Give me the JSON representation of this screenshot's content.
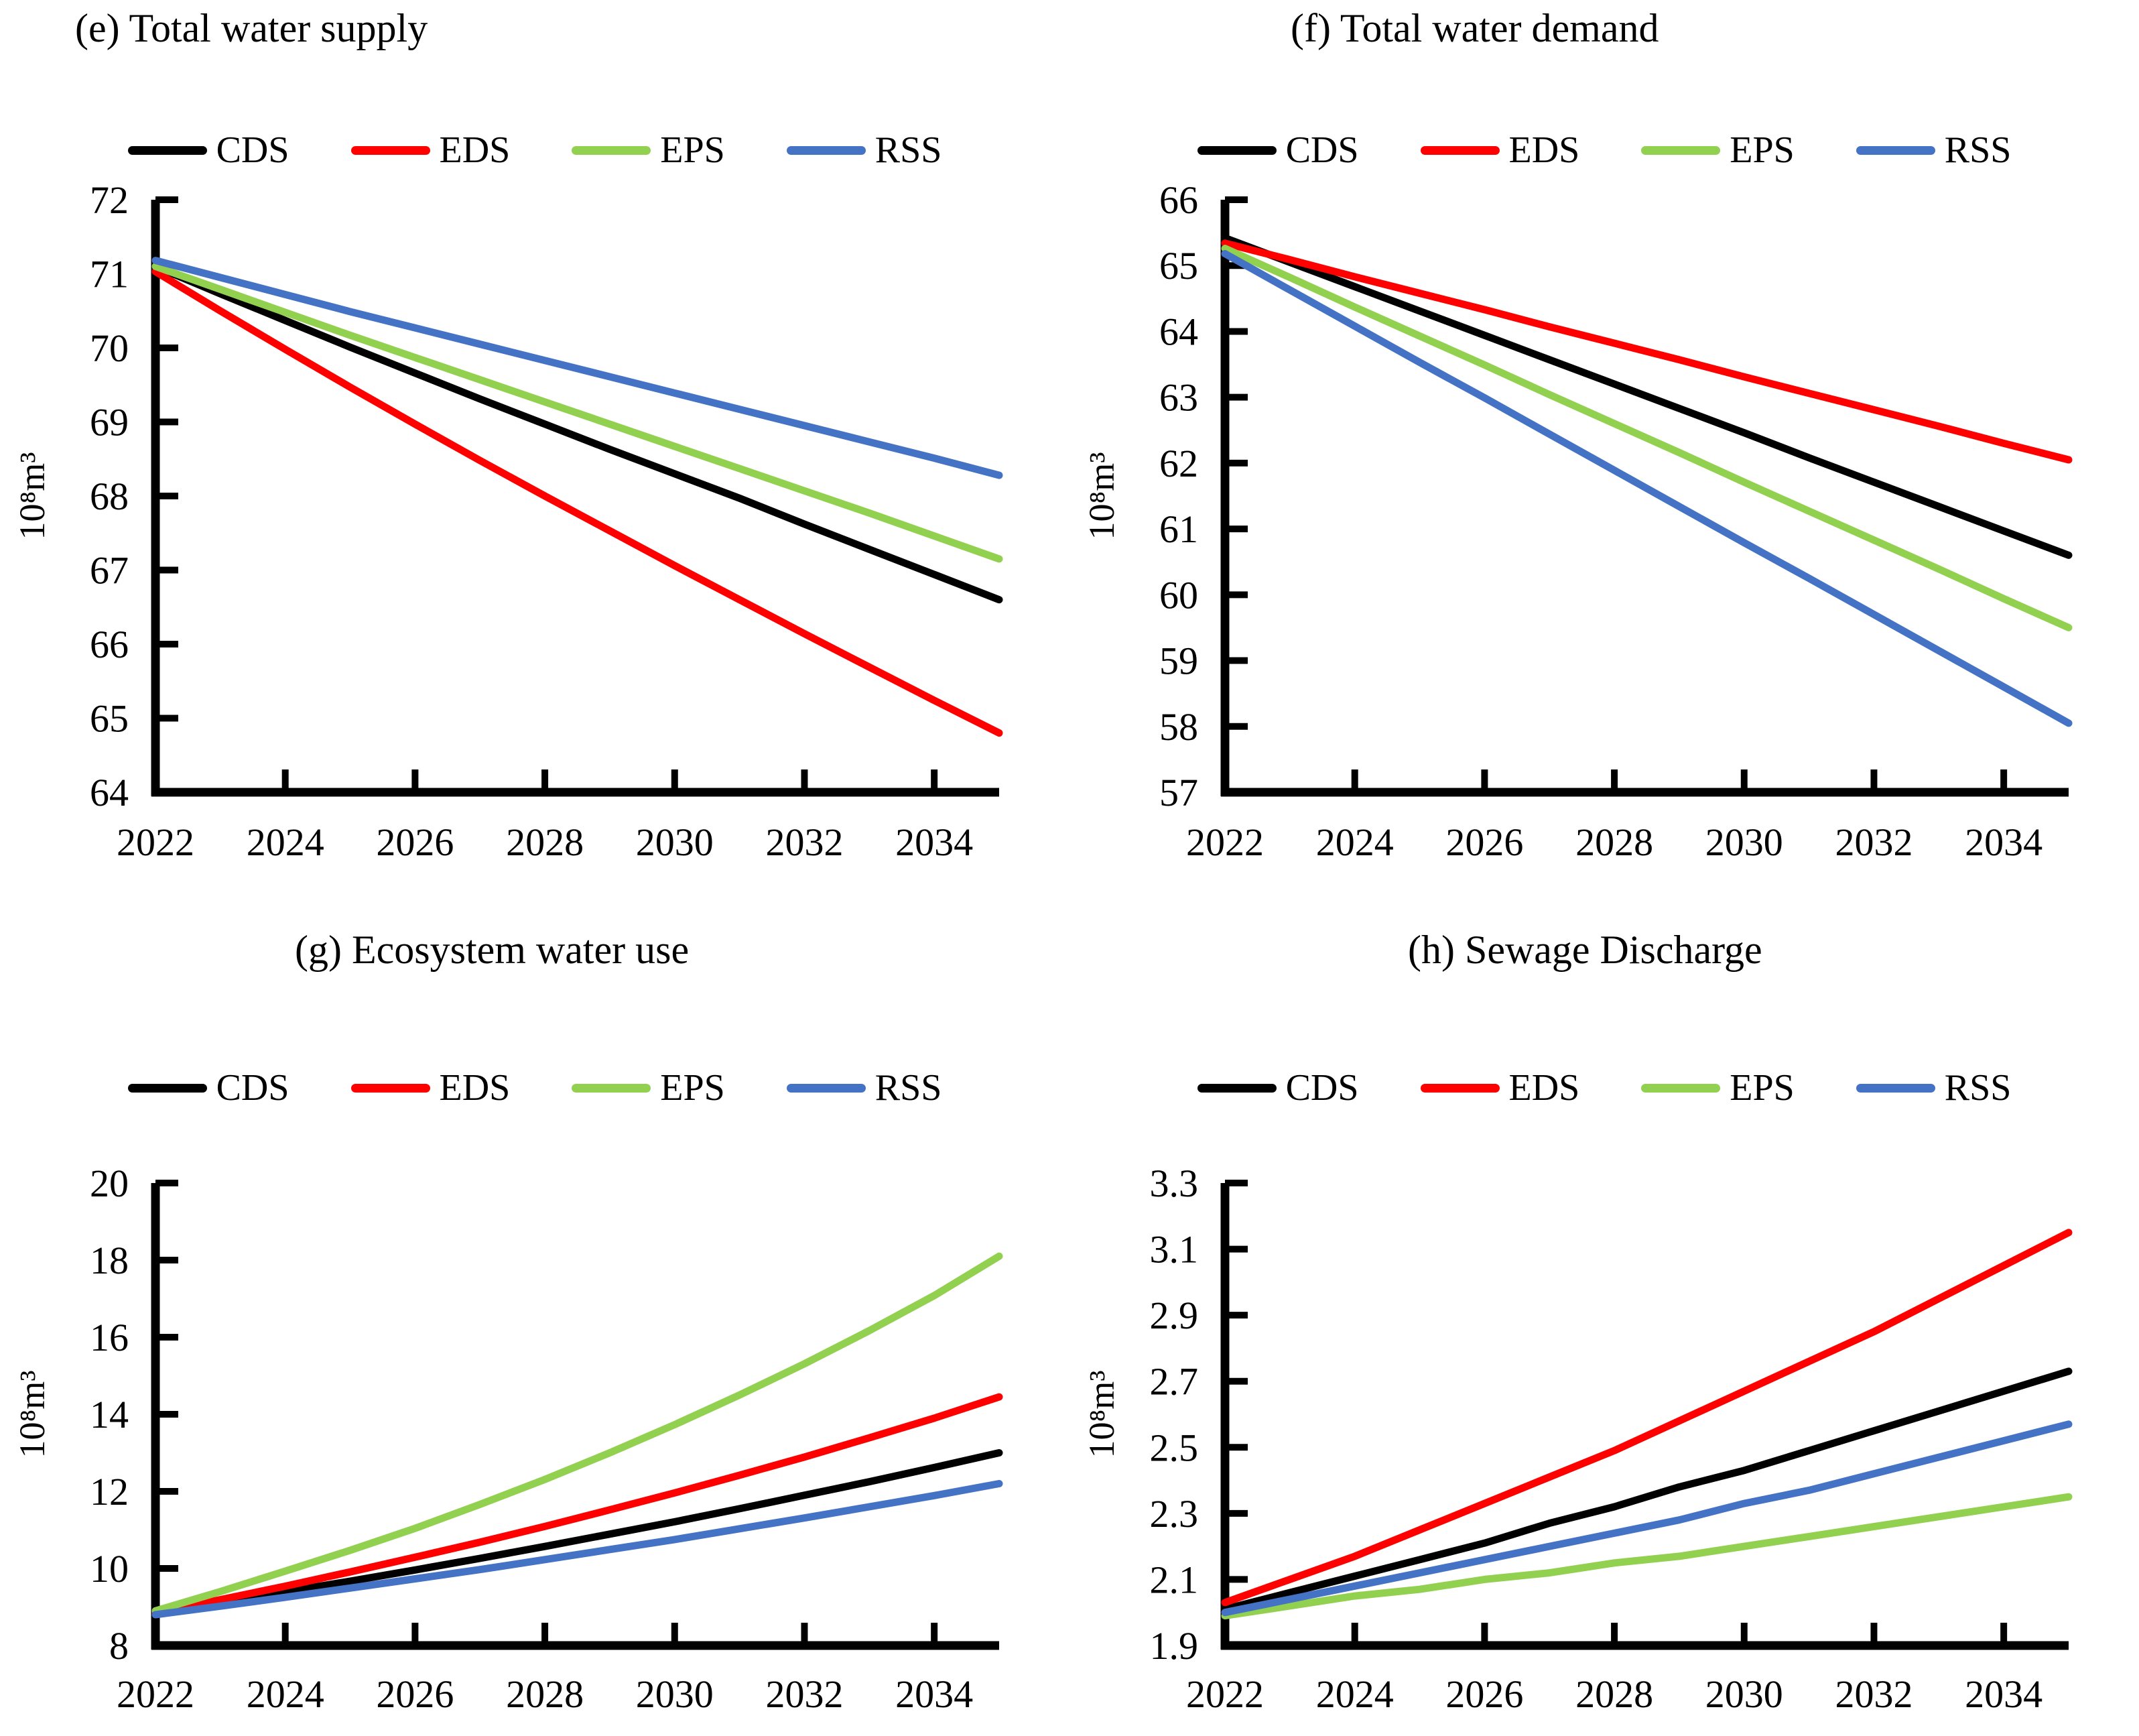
{
  "figure": {
    "background": "#ffffff",
    "scenario_colors": {
      "CDS": "#000000",
      "EDS": "#ff0000",
      "EPS": "#92d050",
      "RSS": "#4472c4"
    }
  },
  "chart_data": [
    {
      "id": "total-water-supply",
      "type": "line",
      "title": "(e) Total water supply",
      "ylabel": "10⁸m³",
      "grid": false,
      "legend_position": "top",
      "ylim": [
        64,
        72
      ],
      "x": [
        2022,
        2023,
        2024,
        2025,
        2026,
        2027,
        2028,
        2029,
        2030,
        2031,
        2032,
        2033,
        2034,
        2035
      ],
      "xticks": [
        {
          "v": 2022,
          "label": "2022"
        },
        {
          "v": 2024,
          "label": "2024"
        },
        {
          "v": 2026,
          "label": "2026"
        },
        {
          "v": 2028,
          "label": "2028"
        },
        {
          "v": 2030,
          "label": "2030"
        },
        {
          "v": 2032,
          "label": "2032"
        },
        {
          "v": 2034,
          "label": "2034"
        }
      ],
      "yticks": [
        {
          "v": 64,
          "label": "64"
        },
        {
          "v": 65,
          "label": "65"
        },
        {
          "v": 66,
          "label": "66"
        },
        {
          "v": 67,
          "label": "67"
        },
        {
          "v": 68,
          "label": "68"
        },
        {
          "v": 69,
          "label": "69"
        },
        {
          "v": 70,
          "label": "70"
        },
        {
          "v": 71,
          "label": "71"
        },
        {
          "v": 72,
          "label": "72"
        }
      ],
      "series": [
        {
          "name": "CDS",
          "color": "#000000",
          "values": [
            71.1,
            70.73,
            70.37,
            70.01,
            69.66,
            69.31,
            68.97,
            68.63,
            68.3,
            67.97,
            67.62,
            67.28,
            66.94,
            66.6
          ]
        },
        {
          "name": "EDS",
          "color": "#ff0000",
          "values": [
            71.03,
            70.5,
            69.98,
            69.47,
            68.97,
            68.48,
            68.0,
            67.53,
            67.06,
            66.6,
            66.14,
            65.69,
            65.24,
            64.8
          ]
        },
        {
          "name": "EPS",
          "color": "#92d050",
          "values": [
            71.1,
            70.79,
            70.48,
            70.17,
            69.87,
            69.57,
            69.27,
            68.97,
            68.67,
            68.37,
            68.07,
            67.77,
            67.46,
            67.15
          ]
        },
        {
          "name": "RSS",
          "color": "#4472c4",
          "values": [
            71.18,
            70.95,
            70.72,
            70.49,
            70.27,
            70.05,
            69.83,
            69.61,
            69.39,
            69.17,
            68.95,
            68.73,
            68.51,
            68.28
          ]
        }
      ]
    },
    {
      "id": "total-water-demand",
      "type": "line",
      "title": "(f) Total water demand",
      "ylabel": "10⁸m³",
      "grid": false,
      "legend_position": "top",
      "ylim": [
        57,
        66
      ],
      "x": [
        2022,
        2023,
        2024,
        2025,
        2026,
        2027,
        2028,
        2029,
        2030,
        2031,
        2032,
        2033,
        2034,
        2035
      ],
      "xticks": [
        {
          "v": 2022,
          "label": "2022"
        },
        {
          "v": 2024,
          "label": "2024"
        },
        {
          "v": 2026,
          "label": "2026"
        },
        {
          "v": 2028,
          "label": "2028"
        },
        {
          "v": 2030,
          "label": "2030"
        },
        {
          "v": 2032,
          "label": "2032"
        },
        {
          "v": 2034,
          "label": "2034"
        }
      ],
      "yticks": [
        {
          "v": 57,
          "label": "57"
        },
        {
          "v": 58,
          "label": "58"
        },
        {
          "v": 59,
          "label": "59"
        },
        {
          "v": 60,
          "label": "60"
        },
        {
          "v": 61,
          "label": "61"
        },
        {
          "v": 62,
          "label": "62"
        },
        {
          "v": 63,
          "label": "63"
        },
        {
          "v": 64,
          "label": "64"
        },
        {
          "v": 65,
          "label": "65"
        },
        {
          "v": 66,
          "label": "66"
        }
      ],
      "series": [
        {
          "name": "CDS",
          "color": "#000000",
          "values": [
            65.42,
            65.05,
            64.68,
            64.31,
            63.94,
            63.57,
            63.2,
            62.83,
            62.46,
            62.08,
            61.71,
            61.34,
            60.97,
            60.6
          ]
        },
        {
          "name": "EDS",
          "color": "#ff0000",
          "values": [
            65.34,
            65.09,
            64.83,
            64.58,
            64.33,
            64.07,
            63.82,
            63.57,
            63.31,
            63.06,
            62.81,
            62.56,
            62.3,
            62.05
          ]
        },
        {
          "name": "EPS",
          "color": "#92d050",
          "values": [
            65.26,
            64.82,
            64.37,
            63.93,
            63.49,
            63.04,
            62.6,
            62.16,
            61.71,
            61.27,
            60.83,
            60.39,
            59.94,
            59.5
          ]
        },
        {
          "name": "RSS",
          "color": "#4472c4",
          "values": [
            65.18,
            64.63,
            64.08,
            63.53,
            62.99,
            62.44,
            61.89,
            61.34,
            60.79,
            60.25,
            59.7,
            59.15,
            58.6,
            58.05
          ]
        }
      ]
    },
    {
      "id": "ecosystem-water-use",
      "type": "line",
      "title": "(g) Ecosystem water use",
      "ylabel": "10⁸m³",
      "grid": false,
      "legend_position": "top",
      "ylim": [
        8,
        20
      ],
      "x": [
        2022,
        2023,
        2024,
        2025,
        2026,
        2027,
        2028,
        2029,
        2030,
        2031,
        2032,
        2033,
        2034,
        2035
      ],
      "xticks": [
        {
          "v": 2022,
          "label": "2022"
        },
        {
          "v": 2024,
          "label": "2024"
        },
        {
          "v": 2026,
          "label": "2026"
        },
        {
          "v": 2028,
          "label": "2028"
        },
        {
          "v": 2030,
          "label": "2030"
        },
        {
          "v": 2032,
          "label": "2032"
        },
        {
          "v": 2034,
          "label": "2034"
        }
      ],
      "yticks": [
        {
          "v": 8,
          "label": "8"
        },
        {
          "v": 10,
          "label": "10"
        },
        {
          "v": 12,
          "label": "12"
        },
        {
          "v": 14,
          "label": "14"
        },
        {
          "v": 16,
          "label": "16"
        },
        {
          "v": 18,
          "label": "18"
        },
        {
          "v": 20,
          "label": "20"
        }
      ],
      "series": [
        {
          "name": "CDS",
          "color": "#000000",
          "values": [
            8.85,
            9.12,
            9.39,
            9.67,
            9.96,
            10.26,
            10.57,
            10.89,
            11.21,
            11.55,
            11.9,
            12.25,
            12.62,
            13.0
          ]
        },
        {
          "name": "EDS",
          "color": "#ff0000",
          "values": [
            8.85,
            9.19,
            9.54,
            9.91,
            10.29,
            10.68,
            11.09,
            11.52,
            11.96,
            12.42,
            12.89,
            13.39,
            13.9,
            14.45
          ]
        },
        {
          "name": "EPS",
          "color": "#92d050",
          "values": [
            8.9,
            9.4,
            9.93,
            10.47,
            11.04,
            11.66,
            12.31,
            13.0,
            13.73,
            14.5,
            15.31,
            16.17,
            17.08,
            18.1
          ]
        },
        {
          "name": "RSS",
          "color": "#4472c4",
          "values": [
            8.8,
            9.02,
            9.25,
            9.49,
            9.73,
            9.97,
            10.23,
            10.49,
            10.75,
            11.03,
            11.31,
            11.6,
            11.89,
            12.2
          ]
        }
      ]
    },
    {
      "id": "sewage-discharge",
      "type": "line",
      "title": "(h) Sewage Discharge",
      "ylabel": "10⁸m³",
      "grid": false,
      "legend_position": "top",
      "ylim": [
        1.9,
        3.3
      ],
      "x": [
        2022,
        2023,
        2024,
        2025,
        2026,
        2027,
        2028,
        2029,
        2030,
        2031,
        2032,
        2033,
        2034,
        2035
      ],
      "xticks": [
        {
          "v": 2022,
          "label": "2022"
        },
        {
          "v": 2024,
          "label": "2024"
        },
        {
          "v": 2026,
          "label": "2026"
        },
        {
          "v": 2028,
          "label": "2028"
        },
        {
          "v": 2030,
          "label": "2030"
        },
        {
          "v": 2032,
          "label": "2032"
        },
        {
          "v": 2034,
          "label": "2034"
        }
      ],
      "yticks": [
        {
          "v": 1.9,
          "label": "1.9"
        },
        {
          "v": 2.1,
          "label": "2.1"
        },
        {
          "v": 2.3,
          "label": "2.3"
        },
        {
          "v": 2.5,
          "label": "2.5"
        },
        {
          "v": 2.7,
          "label": "2.7"
        },
        {
          "v": 2.9,
          "label": "2.9"
        },
        {
          "v": 3.1,
          "label": "3.1"
        },
        {
          "v": 3.3,
          "label": "3.3"
        }
      ],
      "series": [
        {
          "name": "CDS",
          "color": "#000000",
          "values": [
            2.01,
            2.06,
            2.11,
            2.16,
            2.21,
            2.27,
            2.32,
            2.38,
            2.43,
            2.49,
            2.55,
            2.61,
            2.67,
            2.73
          ]
        },
        {
          "name": "EDS",
          "color": "#ff0000",
          "values": [
            2.03,
            2.1,
            2.17,
            2.25,
            2.33,
            2.41,
            2.49,
            2.58,
            2.67,
            2.76,
            2.85,
            2.95,
            3.05,
            3.15
          ]
        },
        {
          "name": "EPS",
          "color": "#92d050",
          "values": [
            1.99,
            2.02,
            2.05,
            2.07,
            2.1,
            2.12,
            2.15,
            2.17,
            2.2,
            2.23,
            2.26,
            2.29,
            2.32,
            2.35
          ]
        },
        {
          "name": "RSS",
          "color": "#4472c4",
          "values": [
            2.0,
            2.04,
            2.08,
            2.12,
            2.16,
            2.2,
            2.24,
            2.28,
            2.33,
            2.37,
            2.42,
            2.47,
            2.52,
            2.57
          ]
        }
      ]
    }
  ]
}
